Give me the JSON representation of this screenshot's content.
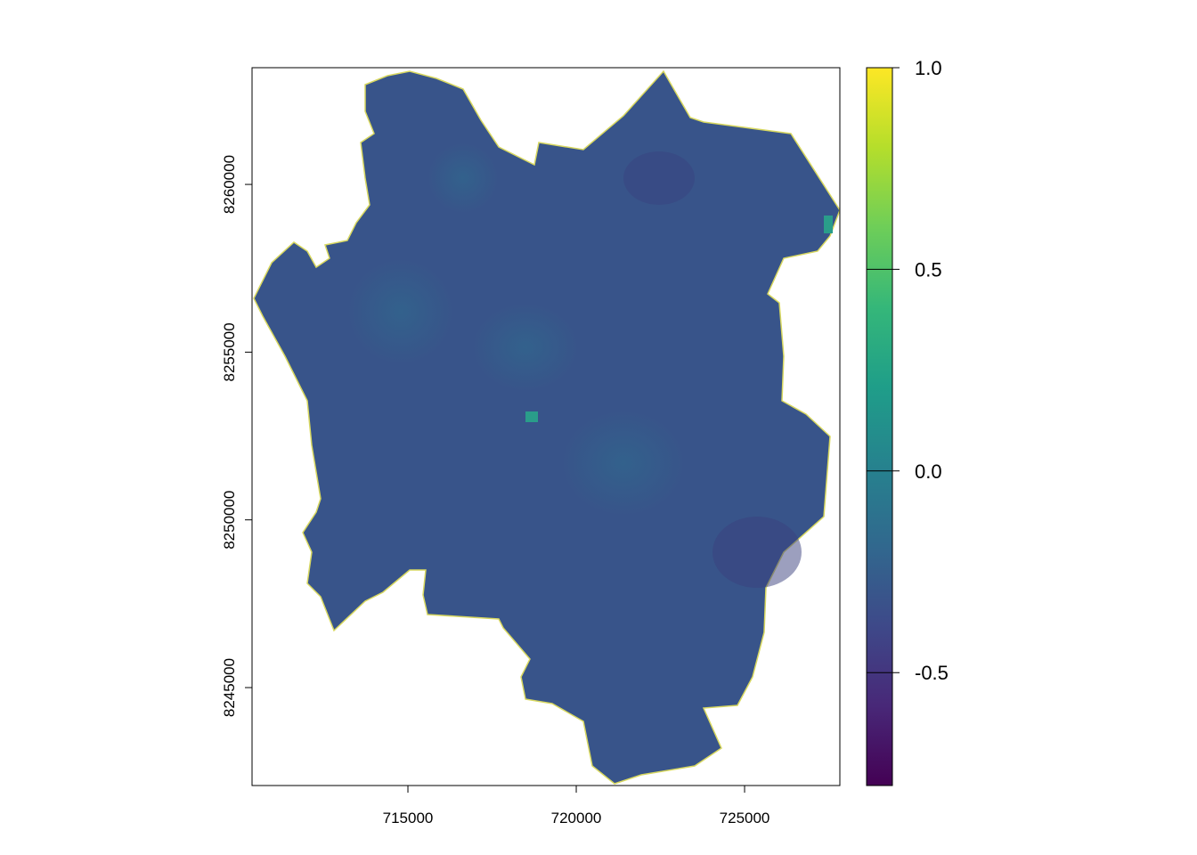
{
  "chart_data": {
    "type": "raster",
    "xlim": [
      710370,
      727830
    ],
    "ylim": [
      8242080,
      8263480
    ],
    "xticks": [
      715000,
      720000,
      725000
    ],
    "yticks": [
      8245000,
      8250000,
      8255000,
      8260000
    ],
    "colorbar_lim": [
      -0.78,
      1.0
    ],
    "colorbar_ticks": [
      -0.5,
      {
        "value": 0,
        "label": "0.0"
      },
      {
        "value": 0.5,
        "label": "0.5"
      },
      {
        "value": 1,
        "label": "1.0"
      }
    ],
    "colormap": [
      "#440154",
      "#482878",
      "#3e4989",
      "#31688e",
      "#26828e",
      "#1f9e89",
      "#35b779",
      "#6ece58",
      "#b5de2b",
      "#fde725"
    ]
  }
}
